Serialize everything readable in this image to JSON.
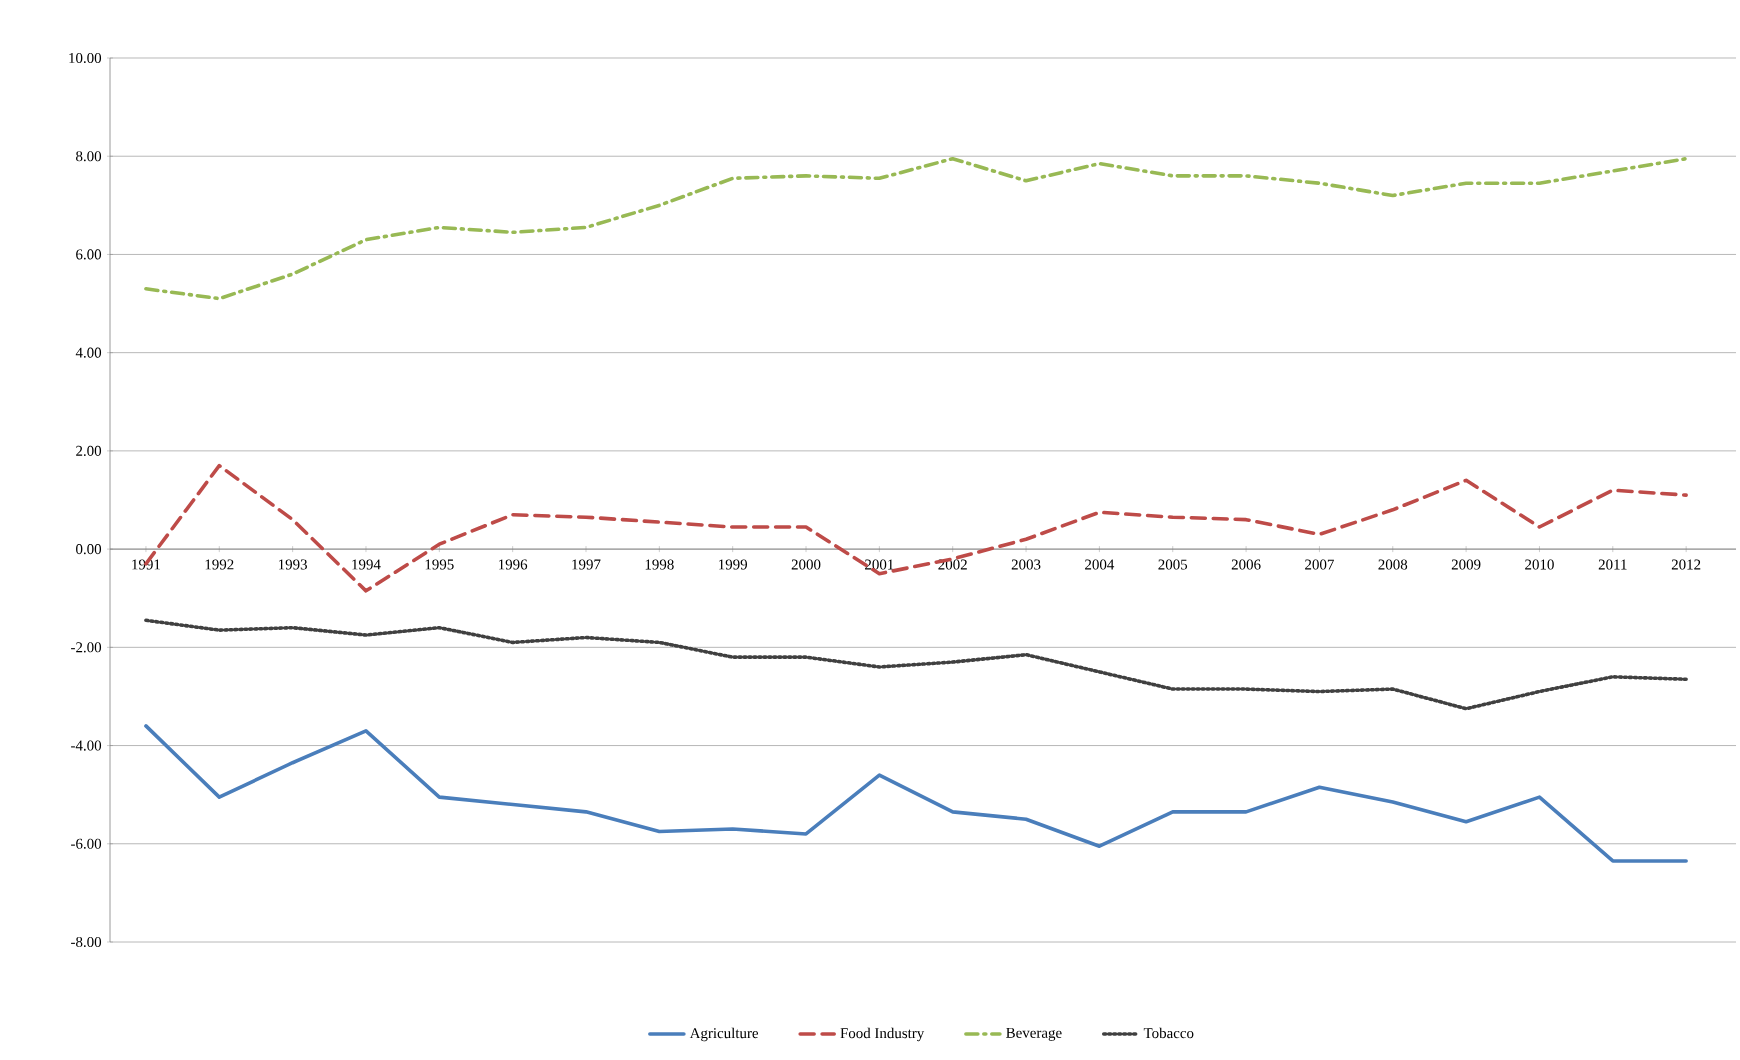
{
  "chart_data": {
    "type": "line",
    "categories": [
      "1991",
      "1992",
      "1993",
      "1994",
      "1995",
      "1996",
      "1997",
      "1998",
      "1999",
      "2000",
      "2001",
      "2002",
      "2003",
      "2004",
      "2005",
      "2006",
      "2007",
      "2008",
      "2009",
      "2010",
      "2011",
      "2012"
    ],
    "series": [
      {
        "name": "Agriculture",
        "color": "#4a7ebb",
        "line_style": "solid",
        "values": [
          -3.6,
          -5.05,
          -4.35,
          -3.7,
          -5.05,
          -5.2,
          -5.35,
          -5.75,
          -5.7,
          -5.8,
          -4.6,
          -5.35,
          -5.5,
          -6.05,
          -5.35,
          -5.35,
          -4.85,
          -5.15,
          -5.55,
          -5.05,
          -6.35,
          -6.35
        ]
      },
      {
        "name": "Food Industry",
        "color": "#be4b48",
        "line_style": "dashed",
        "values": [
          -0.3,
          1.7,
          0.6,
          -0.85,
          0.1,
          0.7,
          0.65,
          0.55,
          0.45,
          0.45,
          -0.5,
          -0.2,
          0.2,
          0.75,
          0.65,
          0.6,
          0.3,
          0.8,
          1.4,
          0.45,
          1.2,
          1.1
        ]
      },
      {
        "name": "Beverage",
        "color": "#98b954",
        "line_style": "dashdot",
        "values": [
          5.3,
          5.1,
          5.6,
          6.3,
          6.55,
          6.45,
          6.55,
          7.0,
          7.55,
          7.6,
          7.55,
          7.95,
          7.5,
          7.85,
          7.6,
          7.6,
          7.45,
          7.2,
          7.45,
          7.45,
          7.7,
          7.95
        ]
      },
      {
        "name": "Tobacco",
        "color": "#404040",
        "line_style": "dotted",
        "values": [
          -1.45,
          -1.65,
          -1.6,
          -1.75,
          -1.6,
          -1.9,
          -1.8,
          -1.9,
          -2.2,
          -2.2,
          -2.4,
          -2.3,
          -2.15,
          -2.5,
          -2.85,
          -2.85,
          -2.9,
          -2.85,
          -3.25,
          -2.9,
          -2.6,
          -2.65
        ]
      }
    ],
    "ylim": [
      -8,
      10
    ],
    "yticks": [
      {
        "value": -8,
        "label": "-8.00"
      },
      {
        "value": -6,
        "label": "-6.00"
      },
      {
        "value": -4,
        "label": "-4.00"
      },
      {
        "value": -2,
        "label": "-2.00"
      },
      {
        "value": 0,
        "label": "0.00"
      },
      {
        "value": 2,
        "label": "2.00"
      },
      {
        "value": 4,
        "label": "4.00"
      },
      {
        "value": 6,
        "label": "6.00"
      },
      {
        "value": 8,
        "label": "8.00"
      },
      {
        "value": 10,
        "label": "10.00"
      }
    ],
    "grid": "y",
    "legend": "bottom",
    "marker": "none"
  }
}
